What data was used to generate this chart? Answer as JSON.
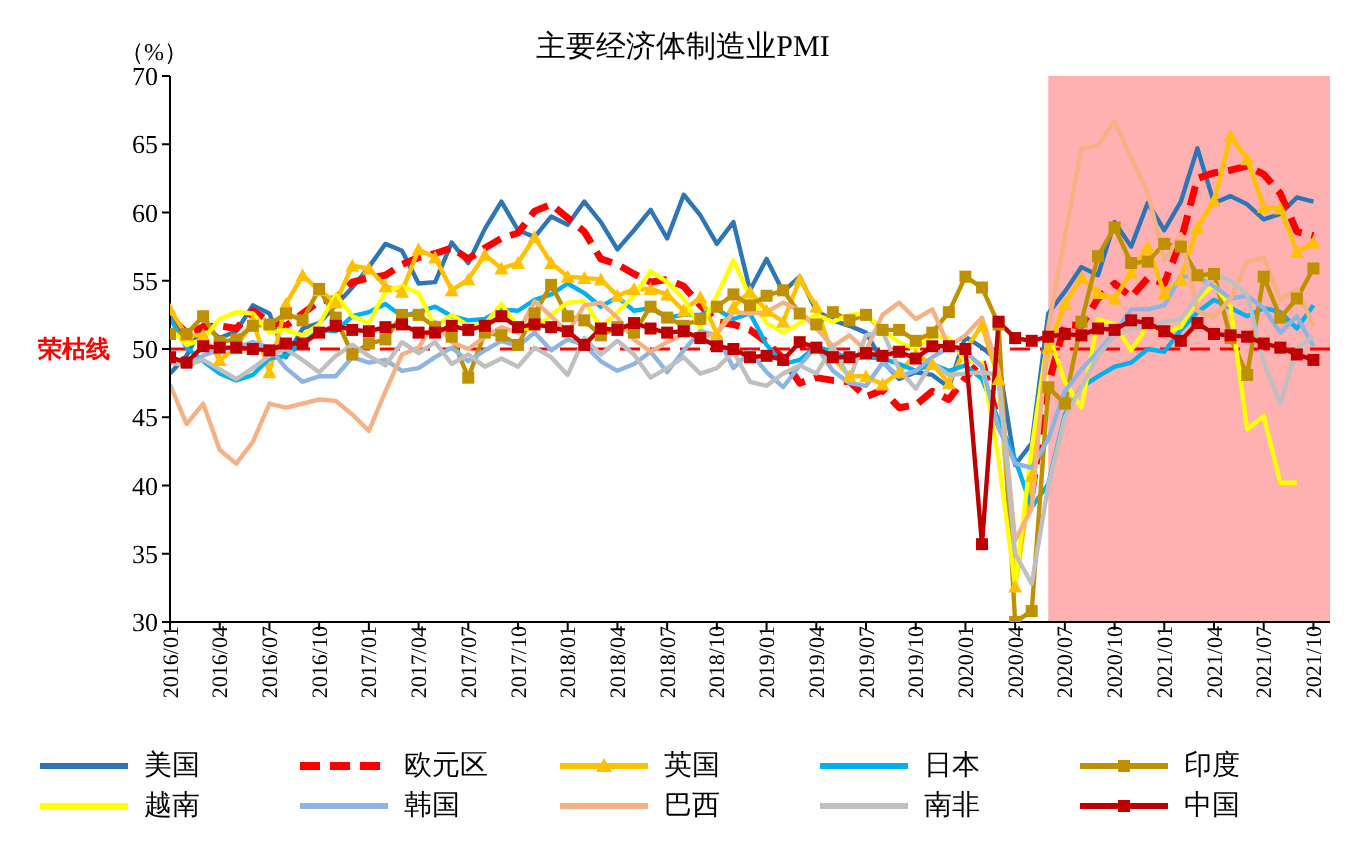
{
  "chart_data": {
    "type": "line",
    "title": "主要经济体制造业PMI",
    "ylabel": "（%）",
    "x": [
      "2016-01",
      "2016-02",
      "2016-03",
      "2016-04",
      "2016-05",
      "2016-06",
      "2016-07",
      "2016-08",
      "2016-09",
      "2016-10",
      "2016-11",
      "2016-12",
      "2017-01",
      "2017-02",
      "2017-03",
      "2017-04",
      "2017-05",
      "2017-06",
      "2017-07",
      "2017-08",
      "2017-09",
      "2017-10",
      "2017-11",
      "2017-12",
      "2018-01",
      "2018-02",
      "2018-03",
      "2018-04",
      "2018-05",
      "2018-06",
      "2018-07",
      "2018-08",
      "2018-09",
      "2018-10",
      "2018-11",
      "2018-12",
      "2019-01",
      "2019-02",
      "2019-03",
      "2019-04",
      "2019-05",
      "2019-06",
      "2019-07",
      "2019-08",
      "2019-09",
      "2019-10",
      "2019-11",
      "2019-12",
      "2020-01",
      "2020-02",
      "2020-03",
      "2020-04",
      "2020-05",
      "2020-06",
      "2020-07",
      "2020-08",
      "2020-09",
      "2020-10",
      "2020-11",
      "2020-12",
      "2021-01",
      "2021-02",
      "2021-03",
      "2021-04",
      "2021-05",
      "2021-06",
      "2021-07",
      "2021-08",
      "2021-09",
      "2021-10"
    ],
    "xlim": [
      "2016-01",
      "2021-11"
    ],
    "xticks": [
      {
        "value": "2016-01",
        "label": "2016/01"
      },
      {
        "value": "2016-04",
        "label": "2016/04"
      },
      {
        "value": "2016-07",
        "label": "2016/07"
      },
      {
        "value": "2016-10",
        "label": "2016/10"
      },
      {
        "value": "2017-01",
        "label": "2017/01"
      },
      {
        "value": "2017-04",
        "label": "2017/04"
      },
      {
        "value": "2017-07",
        "label": "2017/07"
      },
      {
        "value": "2017-10",
        "label": "2017/10"
      },
      {
        "value": "2018-01",
        "label": "2018/01"
      },
      {
        "value": "2018-04",
        "label": "2018/04"
      },
      {
        "value": "2018-07",
        "label": "2018/07"
      },
      {
        "value": "2018-10",
        "label": "2018/10"
      },
      {
        "value": "2019-01",
        "label": "2019/01"
      },
      {
        "value": "2019-04",
        "label": "2019/04"
      },
      {
        "value": "2019-07",
        "label": "2019/07"
      },
      {
        "value": "2019-10",
        "label": "2019/10"
      },
      {
        "value": "2020-01",
        "label": "2020/01"
      },
      {
        "value": "2020-04",
        "label": "2020/04"
      },
      {
        "value": "2020-07",
        "label": "2020/07"
      },
      {
        "value": "2020-10",
        "label": "2020/10"
      },
      {
        "value": "2021-01",
        "label": "2021/01"
      },
      {
        "value": "2021-04",
        "label": "2021/04"
      },
      {
        "value": "2021-07",
        "label": "2021/07"
      },
      {
        "value": "2021-10",
        "label": "2021/10"
      }
    ],
    "ylim": [
      30,
      70
    ],
    "yticks": [
      30,
      35,
      40,
      45,
      50,
      55,
      60,
      65,
      70
    ],
    "grid": false,
    "legend": "bottom",
    "ref_lines": [
      {
        "axis": "y",
        "value": 50,
        "label": "荣枯线",
        "color": "#ff0000",
        "line_style": "dashed"
      }
    ],
    "bands": [
      {
        "axis": "x",
        "from": "2020-06",
        "to": "2021-11",
        "color": "#ffb0b0"
      }
    ],
    "series": [
      {
        "name": "美国",
        "color": "#2e75b6",
        "marker": "none",
        "line_style": "solid",
        "values": [
          48.2,
          49.5,
          51.8,
          50.8,
          51.3,
          53.2,
          52.6,
          49.4,
          51.5,
          51.9,
          53.2,
          54.5,
          56.0,
          57.7,
          57.2,
          54.8,
          54.9,
          57.8,
          56.3,
          58.8,
          60.8,
          58.7,
          58.2,
          59.7,
          59.1,
          60.8,
          59.3,
          57.3,
          58.7,
          60.2,
          58.1,
          61.3,
          59.8,
          57.7,
          59.3,
          54.3,
          56.6,
          54.2,
          55.3,
          52.8,
          52.1,
          51.7,
          51.2,
          49.1,
          47.8,
          48.3,
          48.1,
          47.2,
          50.9,
          50.1,
          49.1,
          41.5,
          43.1,
          52.6,
          54.2,
          56.0,
          55.4,
          59.3,
          57.5,
          60.7,
          58.7,
          60.8,
          64.7,
          60.7,
          61.2,
          60.6,
          59.5,
          59.9,
          61.1,
          60.8
        ]
      },
      {
        "name": "欧元区",
        "color": "#ff0000",
        "marker": "none",
        "line_style": "dashed",
        "values": [
          52.3,
          51.2,
          51.6,
          51.7,
          51.5,
          52.8,
          52.0,
          51.7,
          52.6,
          53.5,
          53.7,
          54.9,
          55.2,
          55.4,
          56.2,
          56.7,
          57.0,
          57.4,
          56.6,
          57.4,
          58.1,
          58.5,
          60.1,
          60.6,
          59.6,
          58.6,
          56.6,
          56.2,
          55.5,
          54.9,
          55.1,
          54.6,
          53.2,
          52.0,
          51.8,
          51.4,
          50.5,
          49.3,
          47.5,
          47.9,
          47.7,
          47.6,
          46.5,
          47.0,
          45.7,
          45.9,
          46.9,
          46.3,
          47.9,
          49.2,
          44.5,
          null,
          39.4,
          47.4,
          51.8,
          51.7,
          53.7,
          54.8,
          53.8,
          55.2,
          54.8,
          57.9,
          62.5,
          62.9,
          63.1,
          63.4,
          62.8,
          61.4,
          58.6,
          58.3
        ]
      },
      {
        "name": "英国",
        "color": "#ffc000",
        "marker": "triangle",
        "line_style": "solid",
        "values": [
          52.9,
          51.0,
          51.0,
          49.2,
          50.1,
          52.1,
          48.3,
          53.3,
          55.4,
          54.3,
          53.4,
          56.1,
          55.9,
          54.6,
          54.2,
          57.3,
          56.7,
          54.3,
          55.1,
          56.9,
          55.9,
          56.3,
          58.2,
          56.3,
          55.3,
          55.2,
          55.1,
          53.9,
          54.4,
          54.4,
          54.0,
          52.8,
          53.8,
          51.1,
          53.1,
          54.2,
          52.8,
          52.0,
          55.1,
          53.1,
          49.4,
          48.0,
          48.0,
          47.4,
          48.3,
          49.6,
          48.9,
          47.5,
          50.0,
          51.7,
          47.8,
          32.6,
          40.7,
          50.1,
          53.3,
          55.2,
          54.1,
          53.7,
          55.6,
          57.5,
          54.1,
          55.1,
          58.9,
          60.9,
          65.6,
          63.9,
          60.4,
          60.3,
          57.1,
          57.8
        ]
      },
      {
        "name": "日本",
        "color": "#00b0f0",
        "marker": "none",
        "line_style": "solid",
        "values": [
          52.3,
          50.1,
          49.1,
          48.2,
          47.7,
          48.1,
          49.3,
          49.5,
          50.4,
          51.4,
          51.3,
          52.4,
          52.7,
          53.3,
          52.4,
          52.7,
          53.1,
          52.4,
          52.1,
          52.2,
          52.9,
          52.8,
          53.6,
          54.0,
          54.8,
          54.1,
          53.1,
          53.8,
          52.8,
          53.0,
          52.3,
          52.5,
          52.5,
          52.9,
          52.2,
          52.6,
          50.3,
          48.9,
          49.2,
          50.2,
          49.8,
          49.3,
          49.4,
          49.3,
          48.9,
          48.4,
          48.9,
          48.4,
          48.8,
          47.8,
          44.8,
          41.9,
          38.4,
          40.1,
          45.2,
          47.2,
          48.0,
          48.7,
          49.0,
          50.0,
          49.8,
          51.4,
          52.7,
          53.6,
          53.0,
          52.4,
          53.0,
          52.7,
          51.5,
          53.2
        ]
      },
      {
        "name": "印度",
        "color": "#bf9000",
        "marker": "square",
        "line_style": "solid",
        "values": [
          51.1,
          51.1,
          52.4,
          50.5,
          50.7,
          51.7,
          51.8,
          52.6,
          52.1,
          54.4,
          52.3,
          49.6,
          50.4,
          50.7,
          52.5,
          52.5,
          51.6,
          50.9,
          47.9,
          51.2,
          51.0,
          50.3,
          52.6,
          54.7,
          52.4,
          52.1,
          51.0,
          51.6,
          51.2,
          53.1,
          52.3,
          51.7,
          52.2,
          53.1,
          54.0,
          53.2,
          53.9,
          54.3,
          52.6,
          51.8,
          52.7,
          52.1,
          52.5,
          51.4,
          51.4,
          50.6,
          51.2,
          52.7,
          55.3,
          54.5,
          51.8,
          30.0,
          30.8,
          47.2,
          46.0,
          52.0,
          56.8,
          58.9,
          56.3,
          56.4,
          57.7,
          57.5,
          55.4,
          55.5,
          50.8,
          48.1,
          55.3,
          52.3,
          53.7,
          55.9
        ]
      },
      {
        "name": "越南",
        "color": "#ffff00",
        "marker": "none",
        "line_style": "solid",
        "values": [
          51.5,
          50.3,
          50.7,
          52.2,
          52.7,
          52.6,
          51.2,
          51.4,
          51.0,
          51.8,
          54.0,
          52.4,
          51.9,
          54.2,
          54.6,
          54.1,
          51.6,
          52.5,
          51.7,
          51.8,
          53.3,
          51.6,
          51.4,
          52.5,
          53.4,
          53.5,
          51.6,
          52.7,
          53.9,
          55.7,
          54.9,
          53.7,
          51.5,
          53.9,
          56.5,
          53.8,
          51.9,
          51.2,
          51.9,
          52.5,
          52.0,
          52.5,
          52.6,
          51.4,
          50.5,
          50.0,
          51.0,
          50.8,
          49.1,
          49.0,
          41.9,
          32.7,
          42.7,
          51.1,
          47.6,
          45.7,
          52.2,
          51.8,
          49.9,
          51.7,
          51.3,
          51.6,
          53.6,
          54.7,
          53.1,
          44.1,
          45.1,
          40.2,
          40.2,
          null
        ]
      },
      {
        "name": "韩国",
        "color": "#8eb4e3",
        "marker": "none",
        "line_style": "solid",
        "values": [
          49.5,
          48.7,
          49.5,
          50.0,
          50.1,
          50.5,
          50.1,
          48.6,
          47.6,
          48.0,
          48.0,
          49.4,
          49.0,
          49.2,
          48.4,
          48.6,
          49.4,
          50.1,
          49.1,
          49.9,
          50.6,
          50.2,
          51.2,
          49.9,
          50.7,
          50.3,
          49.1,
          48.4,
          48.9,
          49.8,
          48.3,
          49.9,
          51.3,
          51.0,
          48.6,
          49.8,
          48.3,
          47.2,
          48.8,
          50.2,
          48.4,
          47.5,
          47.3,
          49.0,
          48.0,
          48.4,
          49.4,
          50.1,
          49.8,
          48.7,
          44.2,
          41.6,
          41.3,
          43.4,
          46.9,
          48.5,
          49.8,
          51.2,
          52.9,
          52.9,
          53.2,
          55.3,
          55.3,
          54.6,
          53.7,
          53.9,
          53.0,
          51.2,
          52.4,
          50.2
        ]
      },
      {
        "name": "巴西",
        "color": "#f4b183",
        "marker": "none",
        "line_style": "solid",
        "values": [
          47.4,
          44.5,
          46.0,
          42.6,
          41.6,
          43.2,
          46.0,
          45.7,
          46.0,
          46.3,
          46.2,
          45.2,
          44.0,
          46.9,
          49.6,
          50.1,
          52.0,
          50.5,
          50.0,
          50.9,
          51.6,
          51.2,
          53.5,
          52.4,
          51.2,
          53.2,
          53.4,
          52.3,
          50.7,
          49.8,
          50.5,
          51.1,
          50.9,
          51.1,
          52.7,
          52.6,
          52.7,
          53.4,
          52.8,
          51.5,
          50.2,
          51.0,
          49.9,
          52.5,
          53.4,
          52.2,
          52.9,
          50.2,
          51.0,
          52.3,
          48.4,
          36.0,
          38.3,
          51.6,
          58.2,
          64.7,
          64.9,
          66.7,
          64.0,
          61.5,
          56.5,
          58.4,
          52.8,
          52.3,
          53.7,
          56.4,
          56.7,
          53.6,
          54.4,
          51.7
        ]
      },
      {
        "name": "南非",
        "color": "#bfbfbf",
        "marker": "none",
        "line_style": "solid",
        "values": [
          49.0,
          48.8,
          49.2,
          48.5,
          47.8,
          48.6,
          49.5,
          50.0,
          49.2,
          48.3,
          49.5,
          50.3,
          49.5,
          48.8,
          50.5,
          49.7,
          50.5,
          48.9,
          49.6,
          48.7,
          49.3,
          48.7,
          50.1,
          49.4,
          48.1,
          50.8,
          49.6,
          50.6,
          49.6,
          47.9,
          48.6,
          49.4,
          48.2,
          48.6,
          49.8,
          47.6,
          47.3,
          48.2,
          48.8,
          48.2,
          50.2,
          47.8,
          51.0,
          51.3,
          48.5,
          47.1,
          49.0,
          48.1,
          48.2,
          48.3,
          48.1,
          35.0,
          32.8,
          40.0,
          45.0,
          47.2,
          49.5,
          51.0,
          51.5,
          51.6,
          52.0,
          52.2,
          53.8,
          55.5,
          55.0,
          54.0,
          49.0,
          46.0,
          50.0,
          51.0
        ]
      },
      {
        "name": "中国",
        "color": "#c00000",
        "marker": "square",
        "line_style": "solid",
        "values": [
          49.4,
          49.0,
          50.2,
          50.1,
          50.1,
          50.0,
          49.9,
          50.4,
          50.4,
          51.2,
          51.7,
          51.4,
          51.3,
          51.6,
          51.8,
          51.2,
          51.2,
          51.7,
          51.4,
          51.7,
          52.4,
          51.6,
          51.8,
          51.6,
          51.3,
          50.3,
          51.5,
          51.4,
          51.9,
          51.5,
          51.2,
          51.3,
          50.8,
          50.2,
          50.0,
          49.4,
          49.5,
          49.2,
          50.5,
          50.1,
          49.4,
          49.4,
          49.7,
          49.5,
          49.8,
          49.3,
          50.2,
          50.2,
          50.0,
          35.7,
          52.0,
          50.8,
          50.6,
          50.9,
          51.1,
          51.0,
          51.5,
          51.4,
          52.1,
          51.9,
          51.3,
          50.6,
          51.9,
          51.1,
          51.0,
          50.9,
          50.4,
          50.1,
          49.6,
          49.2
        ]
      }
    ]
  }
}
